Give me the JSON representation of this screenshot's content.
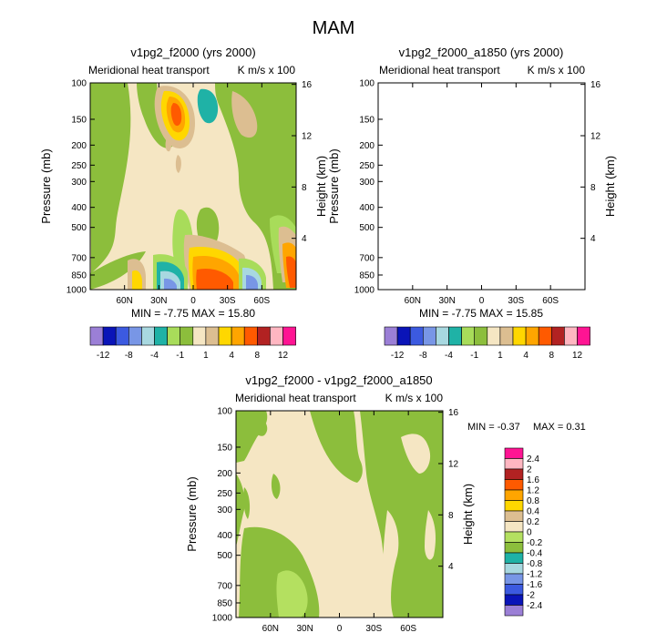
{
  "figure_title": "MAM",
  "colors": {
    "palette": [
      "#9b7fd6",
      "#0a14b8",
      "#3c5ae0",
      "#7896e6",
      "#a8d8e0",
      "#1fb2a6",
      "#a8dc5a",
      "#8cbe3c",
      "#f5e6c3",
      "#dcbe91",
      "#ffd700",
      "#ffa500",
      "#ff5a00",
      "#b22222",
      "#ffb6c1",
      "#ff1493"
    ],
    "diff_palette": [
      "#9b7fd6",
      "#0a14b8",
      "#3c5ae0",
      "#7896e6",
      "#a8d8e0",
      "#1fb2a6",
      "#8cbe3c",
      "#b4e060",
      "#f5e6c3",
      "#dcbe91",
      "#ffd700",
      "#ffa500",
      "#ff5a00",
      "#b22222",
      "#ffb6c1",
      "#ff1493"
    ]
  },
  "chart_data": [
    {
      "type": "heatmap",
      "title": "v1pg2_f2000 (yrs 2000)",
      "subtitle_left": "Meridional heat transport",
      "subtitle_right": "K m/s x 100",
      "ylabel": "Pressure (mb)",
      "ylabel_right": "Height (km)",
      "x_ticks": [
        "60N",
        "30N",
        "0",
        "30S",
        "60S"
      ],
      "x_values": [
        60,
        30,
        0,
        -30,
        -60
      ],
      "xlim": [
        90,
        -90
      ],
      "y_ticks": [
        "100",
        "150",
        "200",
        "250",
        "300",
        "400",
        "500",
        "700",
        "850",
        "1000"
      ],
      "y_values": [
        100,
        150,
        200,
        250,
        300,
        400,
        500,
        700,
        850,
        1000
      ],
      "ylim": [
        100,
        1000
      ],
      "height_ticks": [
        "16",
        "12",
        "8",
        "4"
      ],
      "height_values": [
        16,
        12,
        8,
        4
      ],
      "stats": "MIN = -7.75  MAX = 15.80",
      "min": -7.75,
      "max": 15.8,
      "levels": [
        "-12",
        "-8",
        "-4",
        "-1",
        "1",
        "4",
        "8",
        "12"
      ]
    },
    {
      "type": "heatmap",
      "title": "v1pg2_f2000_a1850 (yrs 2000)",
      "subtitle_left": "Meridional heat transport",
      "subtitle_right": "K m/s x 100",
      "ylabel": "Pressure (mb)",
      "ylabel_right": "Height (km)",
      "x_ticks": [
        "60N",
        "30N",
        "0",
        "30S",
        "60S"
      ],
      "x_values": [
        60,
        30,
        0,
        -30,
        -60
      ],
      "xlim": [
        90,
        -90
      ],
      "y_ticks": [
        "100",
        "150",
        "200",
        "250",
        "300",
        "400",
        "500",
        "700",
        "850",
        "1000"
      ],
      "y_values": [
        100,
        150,
        200,
        250,
        300,
        400,
        500,
        700,
        850,
        1000
      ],
      "ylim": [
        100,
        1000
      ],
      "height_ticks": [
        "16",
        "12",
        "8",
        "4"
      ],
      "height_values": [
        16,
        12,
        8,
        4
      ],
      "stats": "MIN = -7.75  MAX = 15.85",
      "min": -7.75,
      "max": 15.85,
      "levels": [
        "-12",
        "-8",
        "-4",
        "-1",
        "1",
        "4",
        "8",
        "12"
      ]
    },
    {
      "type": "heatmap",
      "title": "v1pg2_f2000 - v1pg2_f2000_a1850",
      "subtitle_left": "Meridional heat transport",
      "subtitle_right": "K m/s x 100",
      "ylabel": "Pressure (mb)",
      "ylabel_right": "Height (km)",
      "x_ticks": [
        "60N",
        "30N",
        "0",
        "30S",
        "60S"
      ],
      "x_values": [
        60,
        30,
        0,
        -30,
        -60
      ],
      "xlim": [
        90,
        -90
      ],
      "y_ticks": [
        "100",
        "150",
        "200",
        "250",
        "300",
        "400",
        "500",
        "700",
        "850",
        "1000"
      ],
      "y_values": [
        100,
        150,
        200,
        250,
        300,
        400,
        500,
        700,
        850,
        1000
      ],
      "ylim": [
        100,
        1000
      ],
      "height_ticks": [
        "16",
        "12",
        "8",
        "4"
      ],
      "height_values": [
        16,
        12,
        8,
        4
      ],
      "stats_min": "MIN = -0.37",
      "stats_max": "MAX =  0.31",
      "min": -0.37,
      "max": 0.31,
      "levels": [
        "2.4",
        "2",
        "1.6",
        "1.2",
        "0.8",
        "0.4",
        "0.2",
        "0",
        "-0.2",
        "-0.4",
        "-0.8",
        "-1.2",
        "-1.6",
        "-2",
        "-2.4"
      ]
    }
  ]
}
